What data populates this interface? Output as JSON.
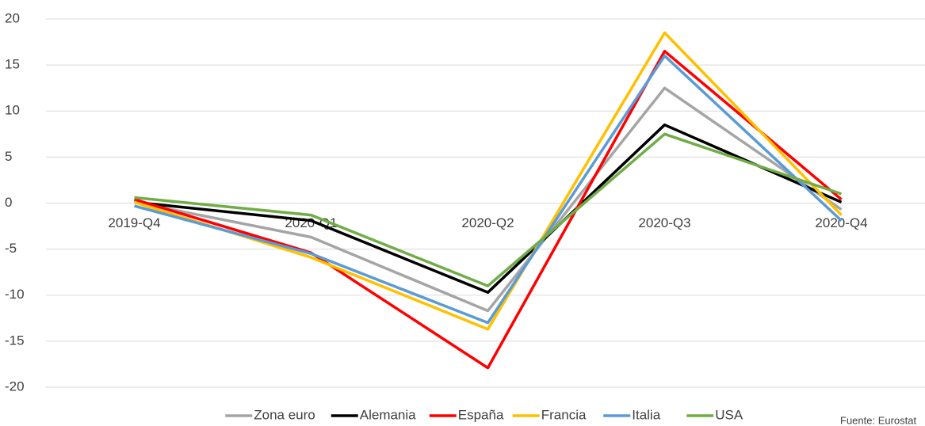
{
  "chart_data": {
    "type": "line",
    "categories": [
      "2019-Q4",
      "2020-Q1",
      "2020-Q2",
      "2020-Q3",
      "2020-Q4"
    ],
    "series": [
      {
        "name": "Zona euro",
        "color": "#a5a5a5",
        "values": [
          0.1,
          -3.7,
          -11.7,
          12.5,
          -0.7
        ]
      },
      {
        "name": "Alemania",
        "color": "#000000",
        "values": [
          0.1,
          -1.9,
          -9.7,
          8.5,
          0.1
        ]
      },
      {
        "name": "España",
        "color": "#ff0000",
        "values": [
          0.4,
          -5.4,
          -17.9,
          16.5,
          0.4
        ]
      },
      {
        "name": "Francia",
        "color": "#ffc000",
        "values": [
          0.1,
          -5.9,
          -13.7,
          18.5,
          -1.3
        ]
      },
      {
        "name": "Italia",
        "color": "#5b9bd5",
        "values": [
          -0.3,
          -5.5,
          -13.0,
          16.0,
          -1.9
        ]
      },
      {
        "name": "USA",
        "color": "#70ad47",
        "values": [
          0.6,
          -1.3,
          -9.0,
          7.5,
          1.0
        ]
      }
    ],
    "ylim": [
      -20,
      20
    ],
    "yticks": [
      -20,
      -15,
      -10,
      -5,
      0,
      5,
      10,
      15,
      20
    ],
    "grid": true,
    "legend": "bottom",
    "source": "Fuente: Eurostat"
  }
}
